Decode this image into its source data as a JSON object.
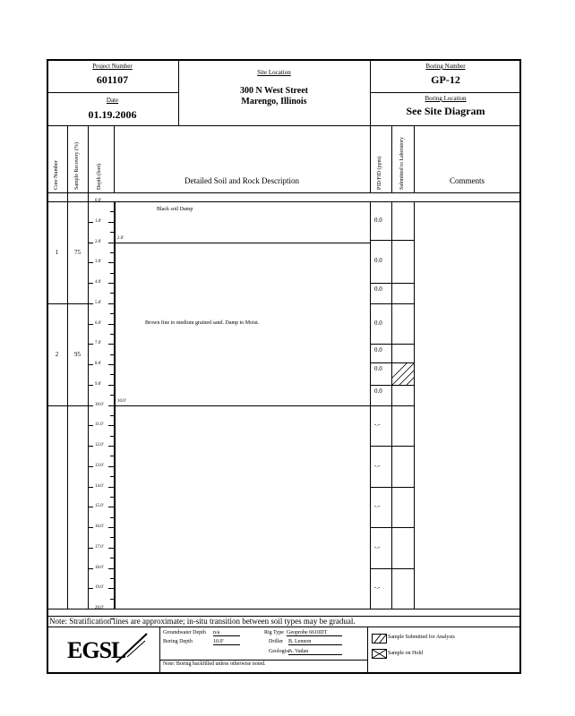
{
  "header": {
    "project_number_label": "Project Number",
    "project_number": "601107",
    "date_label": "Date",
    "date": "01.19.2006",
    "site_location_label": "Site Location",
    "site_location_line1": "300 N West Street",
    "site_location_line2": "Marengo, Illinois",
    "boring_number_label": "Boring Number",
    "boring_number": "GP-12",
    "boring_location_label": "Boring Location",
    "boring_location": "See Site Diagram"
  },
  "columns": {
    "core_number": "Core Number",
    "sample_recovery": "Sample Recovery (%)",
    "depth": "Depth (feet)",
    "description": "Detailed Soil and Rock Description",
    "pid": "PID/FID (ppm)",
    "submitted": "Submitted to Laboratory",
    "comments": "Comments"
  },
  "depth_ticks": [
    "0.0'",
    "1.0'",
    "2.0'",
    "3.0'",
    "4.0'",
    "5.0'",
    "6.0'",
    "7.0'",
    "8.0'",
    "9.0'",
    "10.0'",
    "11.0'",
    "12.0'",
    "13.0'",
    "14.0'",
    "15.0'",
    "16.0'",
    "17.0'",
    "18.0'",
    "19.0'",
    "20.0'"
  ],
  "cores": [
    {
      "number": "1",
      "recovery": "75",
      "from_ft": 0,
      "to_ft": 5
    },
    {
      "number": "2",
      "recovery": "95",
      "from_ft": 5,
      "to_ft": 10
    },
    {
      "number": "",
      "recovery": "",
      "from_ft": 10,
      "to_ft": 20
    }
  ],
  "strata": [
    {
      "description": "Black soil Damp",
      "top_ft": 0,
      "bottom_label": "2.0'",
      "bottom_ft": 2
    },
    {
      "description": "Brown fine to medium grained sand. Damp to Moist.",
      "top_ft": 2,
      "bottom_label": "10.0'",
      "bottom_ft": 10
    }
  ],
  "pid_readings": [
    {
      "value": "0.0",
      "from_ft": 0,
      "to_ft": 1.9,
      "submitted": false
    },
    {
      "value": "0.0",
      "from_ft": 1.9,
      "to_ft": 4.0,
      "submitted": false
    },
    {
      "value": "0.0",
      "from_ft": 4.0,
      "to_ft": 5.0,
      "submitted": false
    },
    {
      "value": "0.0",
      "from_ft": 5.0,
      "to_ft": 7.0,
      "submitted": false
    },
    {
      "value": "0.0",
      "from_ft": 7.0,
      "to_ft": 7.9,
      "submitted": false
    },
    {
      "value": "0.0",
      "from_ft": 7.9,
      "to_ft": 9.0,
      "submitted": true
    },
    {
      "value": "0.0",
      "from_ft": 9.0,
      "to_ft": 10.0,
      "submitted": false
    },
    {
      "value": "-.-",
      "from_ft": 10.0,
      "to_ft": 12.0,
      "submitted": false
    },
    {
      "value": "-.-",
      "from_ft": 12.0,
      "to_ft": 14.0,
      "submitted": false
    },
    {
      "value": "-.-",
      "from_ft": 14.0,
      "to_ft": 16.0,
      "submitted": false
    },
    {
      "value": "-.-",
      "from_ft": 16.0,
      "to_ft": 18.0,
      "submitted": false
    },
    {
      "value": "-.-",
      "from_ft": 18.0,
      "to_ft": 20.0,
      "submitted": false
    }
  ],
  "note": "Note:  Stratification lines are approximate; in-situ transition between soil types may be gradual.",
  "footer": {
    "logo_text": "EGSL",
    "groundwater_depth_label": "Groundwater Depth",
    "groundwater_depth": "n/a",
    "boring_depth_label": "Boring Depth",
    "boring_depth": "10.0'",
    "rig_type_label": "Rig Type",
    "rig_type": "Geoprobe 6610DT",
    "driller_label": "Driller",
    "driller": "B. Lennon",
    "geologist_label": "Geologist",
    "geologist": "A. Vadan",
    "backfill_note": "Note: Boring backfilled unless otherwise noted.",
    "legend_submitted": "Sample Submitted for Analysis",
    "legend_hold": "Sample on Hold"
  }
}
